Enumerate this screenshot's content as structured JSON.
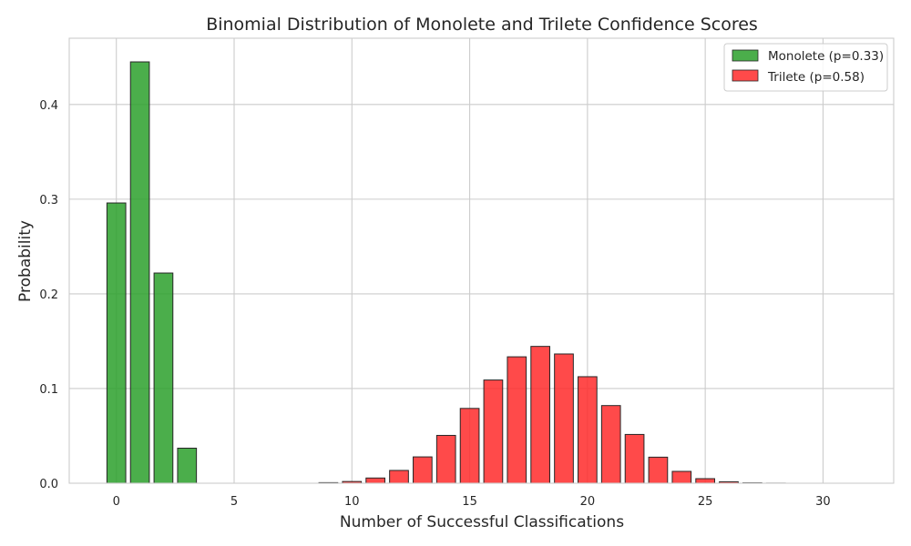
{
  "chart_data": {
    "type": "bar",
    "title": "Binomial Distribution of Monolete and Trilete Confidence Scores",
    "xlabel": "Number of Successful Classifications",
    "ylabel": "Probability",
    "xlim": [
      -2,
      33
    ],
    "ylim": [
      0,
      0.47
    ],
    "xticks": [
      0,
      5,
      10,
      15,
      20,
      25,
      30
    ],
    "yticks": [
      0.0,
      0.1,
      0.2,
      0.3,
      0.4
    ],
    "grid": true,
    "legend_position": "top-right",
    "series": [
      {
        "name": "Monolete (p=0.33)",
        "color": "#2ca02c",
        "x": [
          0,
          1,
          2,
          3
        ],
        "values": [
          0.296,
          0.445,
          0.222,
          0.037
        ]
      },
      {
        "name": "Trilete (p=0.58)",
        "color": "#ff2a2a",
        "x": [
          9,
          10,
          11,
          12,
          13,
          14,
          15,
          16,
          17,
          18,
          19,
          20,
          21,
          22,
          23,
          24,
          25,
          26,
          27,
          28,
          29,
          30,
          31
        ],
        "values": [
          0.0006,
          0.0018,
          0.0055,
          0.0135,
          0.0278,
          0.0505,
          0.079,
          0.109,
          0.1335,
          0.1445,
          0.1365,
          0.1125,
          0.082,
          0.0515,
          0.0275,
          0.0125,
          0.0048,
          0.0015,
          0.0004,
          0.0001,
          0.0,
          0.0,
          0.0
        ]
      }
    ]
  }
}
